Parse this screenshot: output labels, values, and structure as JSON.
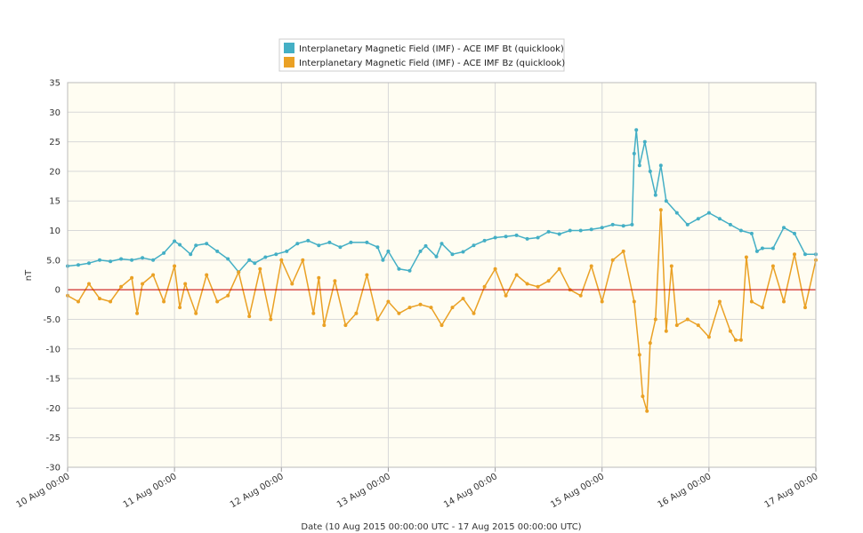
{
  "chart_data": {
    "type": "line",
    "title": "",
    "xlabel": "Date (10 Aug 2015 00:00:00 UTC - 17 Aug 2015 00:00:00 UTC)",
    "ylabel": "nT",
    "ylim": [
      -30,
      35
    ],
    "xlim": [
      "2015-08-10T00:00",
      "2015-08-17T00:00"
    ],
    "grid": true,
    "legend_position": "top-center",
    "y_ticks": [
      "35",
      "30",
      "25",
      "20",
      "15",
      "10",
      "5.0",
      "0",
      "-5.0",
      "-10",
      "-15",
      "-20",
      "-25",
      "-30"
    ],
    "y_tick_values": [
      35,
      30,
      25,
      20,
      15,
      10,
      5,
      0,
      -5,
      -10,
      -15,
      -20,
      -25,
      -30
    ],
    "x_ticks": [
      "10 Aug 00:00",
      "11 Aug 00:00",
      "12 Aug 00:00",
      "13 Aug 00:00",
      "14 Aug 00:00",
      "15 Aug 00:00",
      "16 Aug 00:00",
      "17 Aug 00:00"
    ],
    "x_tick_days": [
      0,
      1,
      2,
      3,
      4,
      5,
      6,
      7
    ],
    "reference_line": {
      "y": 0,
      "color": "#cc0000"
    },
    "colors": {
      "plot_background": "#fffdf2",
      "grid": "#d8d8d8",
      "bt": "#44afc5",
      "bz": "#eaa125"
    },
    "series": [
      {
        "name": "Interplanetary Magnetic Field (IMF) - ACE IMF Bt (quicklook)",
        "color": "#44afc5",
        "x_days": [
          0.0,
          0.1,
          0.2,
          0.3,
          0.4,
          0.5,
          0.6,
          0.7,
          0.8,
          0.9,
          1.0,
          1.05,
          1.15,
          1.2,
          1.3,
          1.4,
          1.5,
          1.6,
          1.7,
          1.75,
          1.85,
          1.95,
          2.05,
          2.15,
          2.25,
          2.35,
          2.45,
          2.55,
          2.65,
          2.8,
          2.9,
          2.95,
          3.0,
          3.1,
          3.2,
          3.3,
          3.35,
          3.45,
          3.5,
          3.6,
          3.7,
          3.8,
          3.9,
          4.0,
          4.1,
          4.2,
          4.3,
          4.4,
          4.5,
          4.6,
          4.7,
          4.8,
          4.9,
          5.0,
          5.1,
          5.2,
          5.28,
          5.3,
          5.32,
          5.35,
          5.4,
          5.45,
          5.5,
          5.55,
          5.6,
          5.7,
          5.8,
          5.9,
          6.0,
          6.1,
          6.2,
          6.3,
          6.4,
          6.45,
          6.5,
          6.6,
          6.7,
          6.8,
          6.9,
          7.0
        ],
        "values": [
          4.0,
          4.2,
          4.5,
          5.0,
          4.8,
          5.2,
          5.0,
          5.4,
          5.0,
          6.2,
          8.2,
          7.6,
          6.0,
          7.5,
          7.8,
          6.5,
          5.2,
          3.0,
          5.0,
          4.5,
          5.5,
          6.0,
          6.5,
          7.8,
          8.3,
          7.5,
          8.0,
          7.2,
          8.0,
          8.0,
          7.2,
          5.0,
          6.5,
          3.5,
          3.2,
          6.5,
          7.4,
          5.6,
          7.8,
          6.0,
          6.4,
          7.5,
          8.3,
          8.8,
          9.0,
          9.2,
          8.6,
          8.8,
          9.8,
          9.4,
          10.0,
          10.0,
          10.2,
          10.5,
          11.0,
          10.8,
          11.0,
          23.0,
          27.0,
          21.0,
          25.0,
          20.0,
          16.0,
          21.0,
          15.0,
          13.0,
          11.0,
          12.0,
          13.0,
          12.0,
          11.0,
          10.0,
          9.5,
          6.5,
          7.0,
          7.0,
          10.5,
          9.5,
          6.0,
          6.0
        ]
      },
      {
        "name": "Interplanetary Magnetic Field (IMF) - ACE IMF Bz (quicklook)",
        "color": "#eaa125",
        "x_days": [
          0.0,
          0.1,
          0.2,
          0.3,
          0.4,
          0.5,
          0.6,
          0.65,
          0.7,
          0.8,
          0.9,
          1.0,
          1.05,
          1.1,
          1.2,
          1.3,
          1.4,
          1.5,
          1.6,
          1.7,
          1.8,
          1.9,
          2.0,
          2.1,
          2.2,
          2.3,
          2.35,
          2.4,
          2.5,
          2.6,
          2.7,
          2.8,
          2.9,
          3.0,
          3.1,
          3.2,
          3.3,
          3.4,
          3.5,
          3.6,
          3.7,
          3.8,
          3.9,
          4.0,
          4.1,
          4.2,
          4.3,
          4.4,
          4.5,
          4.6,
          4.7,
          4.8,
          4.9,
          5.0,
          5.1,
          5.2,
          5.3,
          5.35,
          5.38,
          5.42,
          5.45,
          5.5,
          5.55,
          5.6,
          5.65,
          5.7,
          5.8,
          5.9,
          6.0,
          6.1,
          6.2,
          6.25,
          6.3,
          6.35,
          6.4,
          6.5,
          6.6,
          6.7,
          6.8,
          6.9,
          7.0
        ],
        "values": [
          -1.0,
          -2.0,
          1.0,
          -1.5,
          -2.0,
          0.5,
          2.0,
          -4.0,
          1.0,
          2.5,
          -2.0,
          4.0,
          -3.0,
          1.0,
          -4.0,
          2.5,
          -2.0,
          -1.0,
          3.0,
          -4.5,
          3.5,
          -5.0,
          5.0,
          1.0,
          5.0,
          -4.0,
          2.0,
          -6.0,
          1.5,
          -6.0,
          -4.0,
          2.5,
          -5.0,
          -2.0,
          -4.0,
          -3.0,
          -2.5,
          -3.0,
          -6.0,
          -3.0,
          -1.5,
          -4.0,
          0.5,
          3.5,
          -1.0,
          2.5,
          1.0,
          0.5,
          1.5,
          3.5,
          0.0,
          -1.0,
          4.0,
          -2.0,
          5.0,
          6.5,
          -2.0,
          -11.0,
          -18.0,
          -20.5,
          -9.0,
          -5.0,
          13.5,
          -7.0,
          4.0,
          -6.0,
          -5.0,
          -6.0,
          -8.0,
          -2.0,
          -7.0,
          -8.5,
          -8.5,
          5.5,
          -2.0,
          -3.0,
          4.0,
          -2.0,
          6.0,
          -3.0,
          5.0
        ]
      }
    ]
  }
}
